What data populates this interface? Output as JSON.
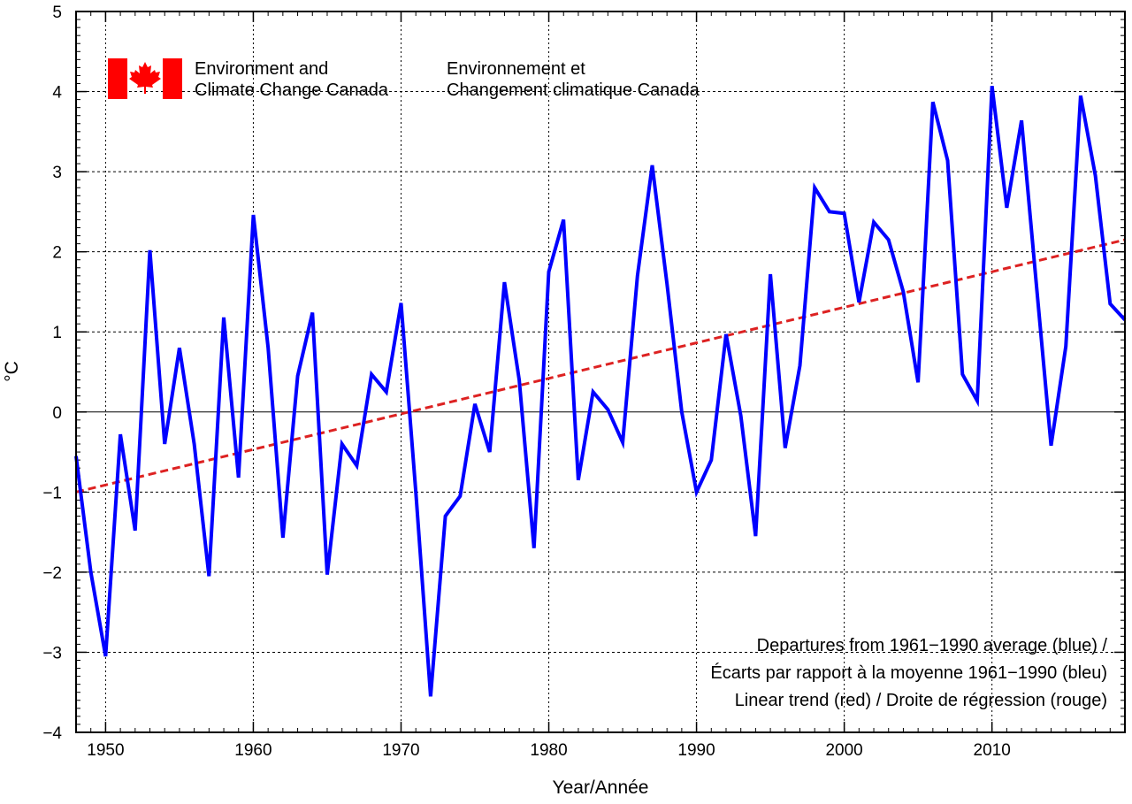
{
  "chart_data": {
    "type": "line",
    "xlabel": "Year/Année",
    "ylabel": "°C",
    "xlim": [
      1948,
      2019
    ],
    "ylim": [
      -4,
      5
    ],
    "xticks": [
      1950,
      1960,
      1970,
      1980,
      1990,
      2000,
      2010
    ],
    "yticks": [
      -4,
      -3,
      -2,
      -1,
      0,
      1,
      2,
      3,
      4,
      5
    ],
    "grid": true,
    "logo": {
      "english": [
        "Environment and",
        "Climate Change Canada"
      ],
      "french": [
        "Environnement et",
        "Changement climatique Canada"
      ],
      "flag_color": "#ff0000"
    },
    "legend_lines": [
      "Departures from 1961−1990 average (blue) /",
      "Écarts par rapport à la moyenne 1961−1990 (bleu)",
      "Linear trend (red) / Droite de régression (rouge)"
    ],
    "legend_placement": "bottom-right",
    "series": [
      {
        "color": "#0000ff",
        "x": [
          1948,
          1949,
          1950,
          1951,
          1952,
          1953,
          1954,
          1955,
          1956,
          1957,
          1958,
          1959,
          1960,
          1961,
          1962,
          1963,
          1964,
          1965,
          1966,
          1967,
          1968,
          1969,
          1970,
          1971,
          1972,
          1973,
          1974,
          1975,
          1976,
          1977,
          1978,
          1979,
          1980,
          1981,
          1982,
          1983,
          1984,
          1985,
          1986,
          1987,
          1988,
          1989,
          1990,
          1991,
          1992,
          1993,
          1994,
          1995,
          1996,
          1997,
          1998,
          1999,
          2000,
          2001,
          2002,
          2003,
          2004,
          2005,
          2006,
          2007,
          2008,
          2009,
          2010,
          2011,
          2012,
          2013,
          2014,
          2015,
          2016,
          2017,
          2018,
          2019
        ],
        "y": [
          -0.55,
          -2.0,
          -3.05,
          -0.28,
          -1.48,
          2.02,
          -0.4,
          0.8,
          -0.4,
          -2.05,
          1.18,
          -0.82,
          2.46,
          0.8,
          -1.57,
          0.45,
          1.24,
          -2.03,
          -0.4,
          -0.67,
          0.47,
          0.25,
          1.36,
          -1.0,
          -3.55,
          -1.3,
          -1.05,
          0.1,
          -0.5,
          1.62,
          0.4,
          -1.7,
          1.75,
          2.4,
          -0.85,
          0.25,
          0.03,
          -0.38,
          1.7,
          3.08,
          1.6,
          0.0,
          -1.0,
          -0.6,
          0.97,
          -0.05,
          -1.55,
          1.72,
          -0.45,
          0.58,
          2.8,
          2.5,
          2.48,
          1.37,
          2.37,
          2.15,
          1.5,
          0.37,
          3.87,
          3.14,
          0.47,
          0.14,
          4.07,
          2.55,
          3.64,
          1.6,
          -0.42,
          0.82,
          3.95,
          2.95,
          1.35,
          1.15
        ]
      },
      {
        "color": "#dd2222",
        "style": "dashed",
        "x": [
          1948,
          2019
        ],
        "y": [
          -1.0,
          2.15
        ]
      }
    ]
  }
}
